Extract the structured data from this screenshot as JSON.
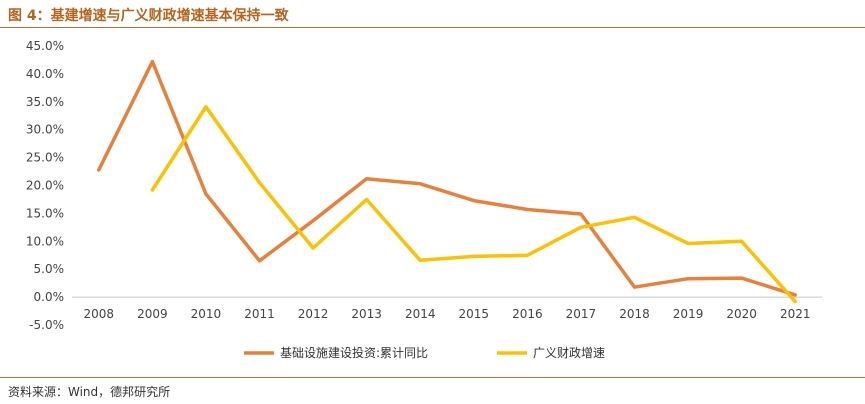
{
  "title": "图 4：基建增速与广义财政增速基本保持一致",
  "source": "资料来源：Wind，德邦研究所",
  "chart_data": {
    "type": "line",
    "title": "",
    "xlabel": "",
    "ylabel": "",
    "x": [
      "2008",
      "2009",
      "2010",
      "2011",
      "2012",
      "2013",
      "2014",
      "2015",
      "2016",
      "2017",
      "2018",
      "2019",
      "2020",
      "2021"
    ],
    "ylim": [
      -5,
      45
    ],
    "yticks": [
      "45.0%",
      "40.0%",
      "35.0%",
      "30.0%",
      "25.0%",
      "20.0%",
      "15.0%",
      "10.0%",
      "5.0%",
      "0.0%",
      "-5.0%"
    ],
    "grid": false,
    "legend_position": "bottom",
    "series": [
      {
        "name": "基础设施建设投资:累计同比",
        "color": "#e8803a",
        "values": [
          22.8,
          42.2,
          18.5,
          6.5,
          13.7,
          21.2,
          20.3,
          17.3,
          15.7,
          14.9,
          1.8,
          3.3,
          3.4,
          0.4
        ]
      },
      {
        "name": "广义财政增速",
        "color": "#ffc000",
        "values": [
          null,
          19.2,
          34.1,
          20.5,
          8.8,
          17.5,
          6.6,
          7.3,
          7.5,
          12.5,
          14.3,
          9.6,
          10.0,
          -0.8
        ]
      }
    ]
  }
}
